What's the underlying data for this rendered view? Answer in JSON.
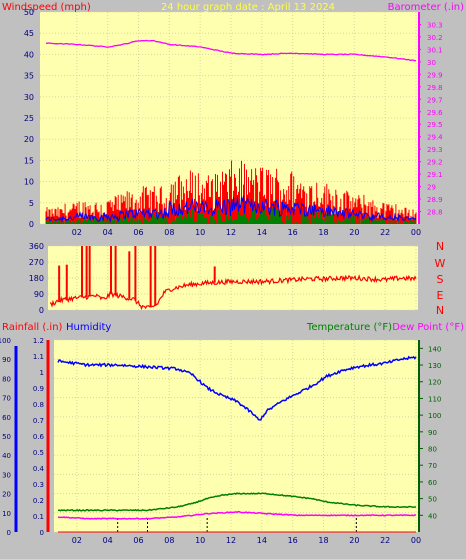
{
  "header": {
    "title": "24 hour graph date : April 13 2024",
    "windspeed_label": "Windspeed (mph)",
    "barometer_label": "Barometer (.in)"
  },
  "direction_panel": {
    "compass_labels": [
      "N",
      "W",
      "S",
      "E",
      "N"
    ]
  },
  "lower_panel": {
    "rainfall_label": "Rainfall (.in)",
    "humidity_label": "Humidity",
    "temperature_label": "Temperature (°F)",
    "dewpoint_label": "Dew Point (°F)"
  },
  "colors": {
    "plot_bg": "#ffffb0",
    "frame": "#c0c0c0",
    "windspeed": "#ff0000",
    "windspeed_avg": "#0000ff",
    "wind_low": "#008000",
    "barometer": "#ff00ff",
    "direction": "#ff0000",
    "humidity": "#0000ff",
    "temperature": "#008000",
    "dewpoint": "#ff00ff",
    "rainfall": "#ff0000",
    "title": "#ffff40"
  },
  "chart_data": [
    {
      "type": "line",
      "name": "windspeed-barometer",
      "x_ticks": [
        "02",
        "04",
        "06",
        "08",
        "10",
        "12",
        "14",
        "16",
        "18",
        "20",
        "22",
        "00"
      ],
      "y_left": {
        "label": "Windspeed (mph)",
        "ylim": [
          0,
          50
        ],
        "ticks": [
          "0",
          "5",
          "10",
          "15",
          "20",
          "25",
          "30",
          "35",
          "40",
          "45",
          "50"
        ]
      },
      "y_right": {
        "label": "Barometer (.in)",
        "ylim": [
          28.7,
          30.4
        ],
        "ticks": [
          "28.8",
          "28.9",
          "29",
          "29.1",
          "29.2",
          "29.3",
          "29.4",
          "29.5",
          "29.6",
          "29.7",
          "29.8",
          "29.9",
          "30",
          "30.1",
          "30.2",
          "30.3"
        ]
      },
      "grid": true,
      "series": [
        {
          "name": "Windspeed",
          "axis": "left",
          "color": "#ff0000",
          "hourly_peak": [
            4,
            5,
            6,
            6,
            7,
            8,
            9,
            9,
            12,
            13,
            12,
            14,
            15,
            14,
            14,
            13,
            12,
            11,
            10,
            8,
            7,
            6,
            5,
            4
          ],
          "hourly_base": [
            1,
            1,
            1,
            1,
            1,
            2,
            2,
            2,
            3,
            3,
            3,
            3,
            4,
            4,
            3,
            3,
            3,
            3,
            2,
            2,
            2,
            1,
            1,
            1
          ]
        },
        {
          "name": "Barometer",
          "axis": "right",
          "x": [
            0,
            2,
            4,
            5,
            6,
            7,
            8,
            10,
            12,
            14,
            16,
            18,
            20,
            22,
            24
          ],
          "y": [
            30.15,
            30.14,
            30.12,
            30.14,
            30.17,
            30.17,
            30.14,
            30.12,
            30.07,
            30.06,
            30.07,
            30.06,
            30.06,
            30.04,
            30.01
          ]
        }
      ]
    },
    {
      "type": "line",
      "name": "wind-direction",
      "x_ticks": [
        "02",
        "04",
        "06",
        "08",
        "10",
        "12",
        "14",
        "16",
        "18",
        "20",
        "22",
        "00"
      ],
      "y_left": {
        "ylim": [
          0,
          360
        ],
        "ticks": [
          "0",
          "90",
          "180",
          "270",
          "360"
        ]
      },
      "y_right": {
        "ticks": [
          "N",
          "W",
          "S",
          "E",
          "N"
        ]
      },
      "grid": true,
      "series": [
        {
          "name": "Wind direction",
          "x": [
            0,
            0.5,
            1,
            2,
            3,
            3.5,
            4,
            5,
            5.5,
            6,
            6.5,
            7,
            7.5,
            8,
            9,
            10,
            11,
            12,
            13,
            14,
            15,
            16,
            17,
            18,
            19,
            20,
            21,
            22,
            23,
            24
          ],
          "y": [
            30,
            50,
            60,
            70,
            80,
            60,
            90,
            70,
            60,
            20,
            10,
            30,
            100,
            120,
            140,
            150,
            155,
            160,
            160,
            160,
            165,
            170,
            175,
            175,
            180,
            180,
            175,
            170,
            180,
            175
          ],
          "spikes": [
            {
              "x": 0.6,
              "top": 250
            },
            {
              "x": 1.1,
              "top": 255
            },
            {
              "x": 2.1,
              "top": 360
            },
            {
              "x": 2.4,
              "top": 360
            },
            {
              "x": 2.6,
              "top": 360
            },
            {
              "x": 4.0,
              "top": 360
            },
            {
              "x": 4.3,
              "top": 360
            },
            {
              "x": 5.2,
              "top": 330
            },
            {
              "x": 5.6,
              "top": 360
            },
            {
              "x": 6.6,
              "top": 360
            },
            {
              "x": 6.9,
              "top": 360
            },
            {
              "x": 10.8,
              "top": 245
            }
          ]
        }
      ]
    },
    {
      "type": "line",
      "name": "humidity-temperature",
      "x_ticks": [
        "02",
        "04",
        "06",
        "08",
        "10",
        "12",
        "14",
        "16",
        "18",
        "20",
        "22",
        "00"
      ],
      "y_left_outer": {
        "label": "Humidity",
        "ylim": [
          0,
          100
        ],
        "ticks": [
          "0",
          "10",
          "20",
          "30",
          "40",
          "50",
          "60",
          "70",
          "80",
          "90",
          "100"
        ]
      },
      "y_left_inner": {
        "label": "Rainfall (.in)",
        "ylim": [
          0,
          1.2
        ],
        "ticks": [
          "0",
          "0.1",
          "0.2",
          "0.3",
          "0.4",
          "0.5",
          "0.6",
          "0.7",
          "0.8",
          "0.9",
          "1",
          "1.1",
          "1.2"
        ]
      },
      "y_right": {
        "label": "Temperature (°F)",
        "ylim": [
          30,
          145
        ],
        "ticks": [
          "40",
          "50",
          "60",
          "70",
          "80",
          "90",
          "100",
          "110",
          "120",
          "130",
          "140"
        ]
      },
      "grid": true,
      "series": [
        {
          "name": "Humidity",
          "axis": "left_outer",
          "x": [
            0,
            2,
            4,
            6,
            8,
            9,
            10,
            11,
            12,
            13,
            13.5,
            14,
            15,
            16,
            17,
            18,
            19,
            20,
            22,
            23,
            24
          ],
          "y": [
            89,
            87,
            87,
            86,
            85,
            82,
            75,
            71,
            68,
            62,
            58,
            63,
            68,
            72,
            76,
            81,
            84,
            86,
            88,
            90,
            91
          ]
        },
        {
          "name": "Temperature",
          "axis": "right",
          "x": [
            0,
            2,
            4,
            6,
            7,
            8,
            9,
            10,
            11,
            12,
            13,
            14,
            15,
            16,
            17,
            18,
            19,
            20,
            22,
            24
          ],
          "y": [
            43,
            43,
            43,
            43,
            44,
            45,
            47,
            50,
            52,
            53,
            53,
            53,
            52,
            51,
            50,
            48,
            47,
            46,
            45,
            45
          ]
        },
        {
          "name": "Dew Point",
          "axis": "right",
          "x": [
            0,
            2,
            4,
            6,
            8,
            10,
            12,
            14,
            16,
            18,
            20,
            22,
            24
          ],
          "y": [
            39,
            38,
            38,
            38,
            39,
            41,
            42,
            41,
            40,
            40,
            40,
            40,
            40
          ]
        },
        {
          "name": "Rainfall",
          "axis": "left_inner",
          "x": [
            0,
            24
          ],
          "y": [
            0,
            0
          ]
        }
      ]
    }
  ]
}
